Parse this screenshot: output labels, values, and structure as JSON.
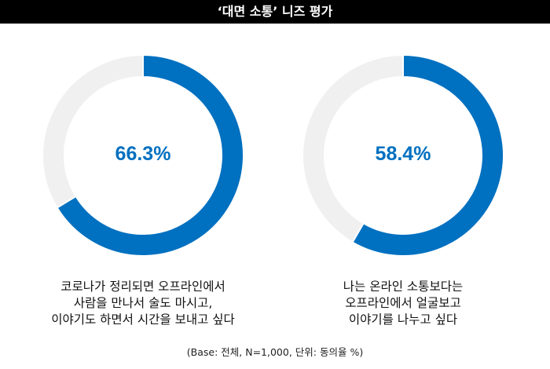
{
  "chart_data": [
    {
      "type": "pie",
      "subtype": "donut",
      "value": 66.3,
      "value_label": "66.3%",
      "remainder": 33.7,
      "label_lines": [
        "코로나가 정리되면 오프라인에서",
        "사람을 만나서 술도 마시고,",
        "이야기도 하면서 시간을 보내고 싶다"
      ]
    },
    {
      "type": "pie",
      "subtype": "donut",
      "value": 58.4,
      "value_label": "58.4%",
      "remainder": 41.6,
      "label_lines": [
        "나는 온라인 소통보다는",
        "오프라인에서 얼굴보고",
        "이야기를 나누고 싶다"
      ]
    }
  ],
  "title": "‘대면 소통’ 니즈 평가",
  "note": "(Base: 전체, N=1,000, 단위: 동의율 %)",
  "colors": {
    "value": "#0070c0",
    "remainder": "#f0f0f0",
    "header_bg": "#000000"
  }
}
